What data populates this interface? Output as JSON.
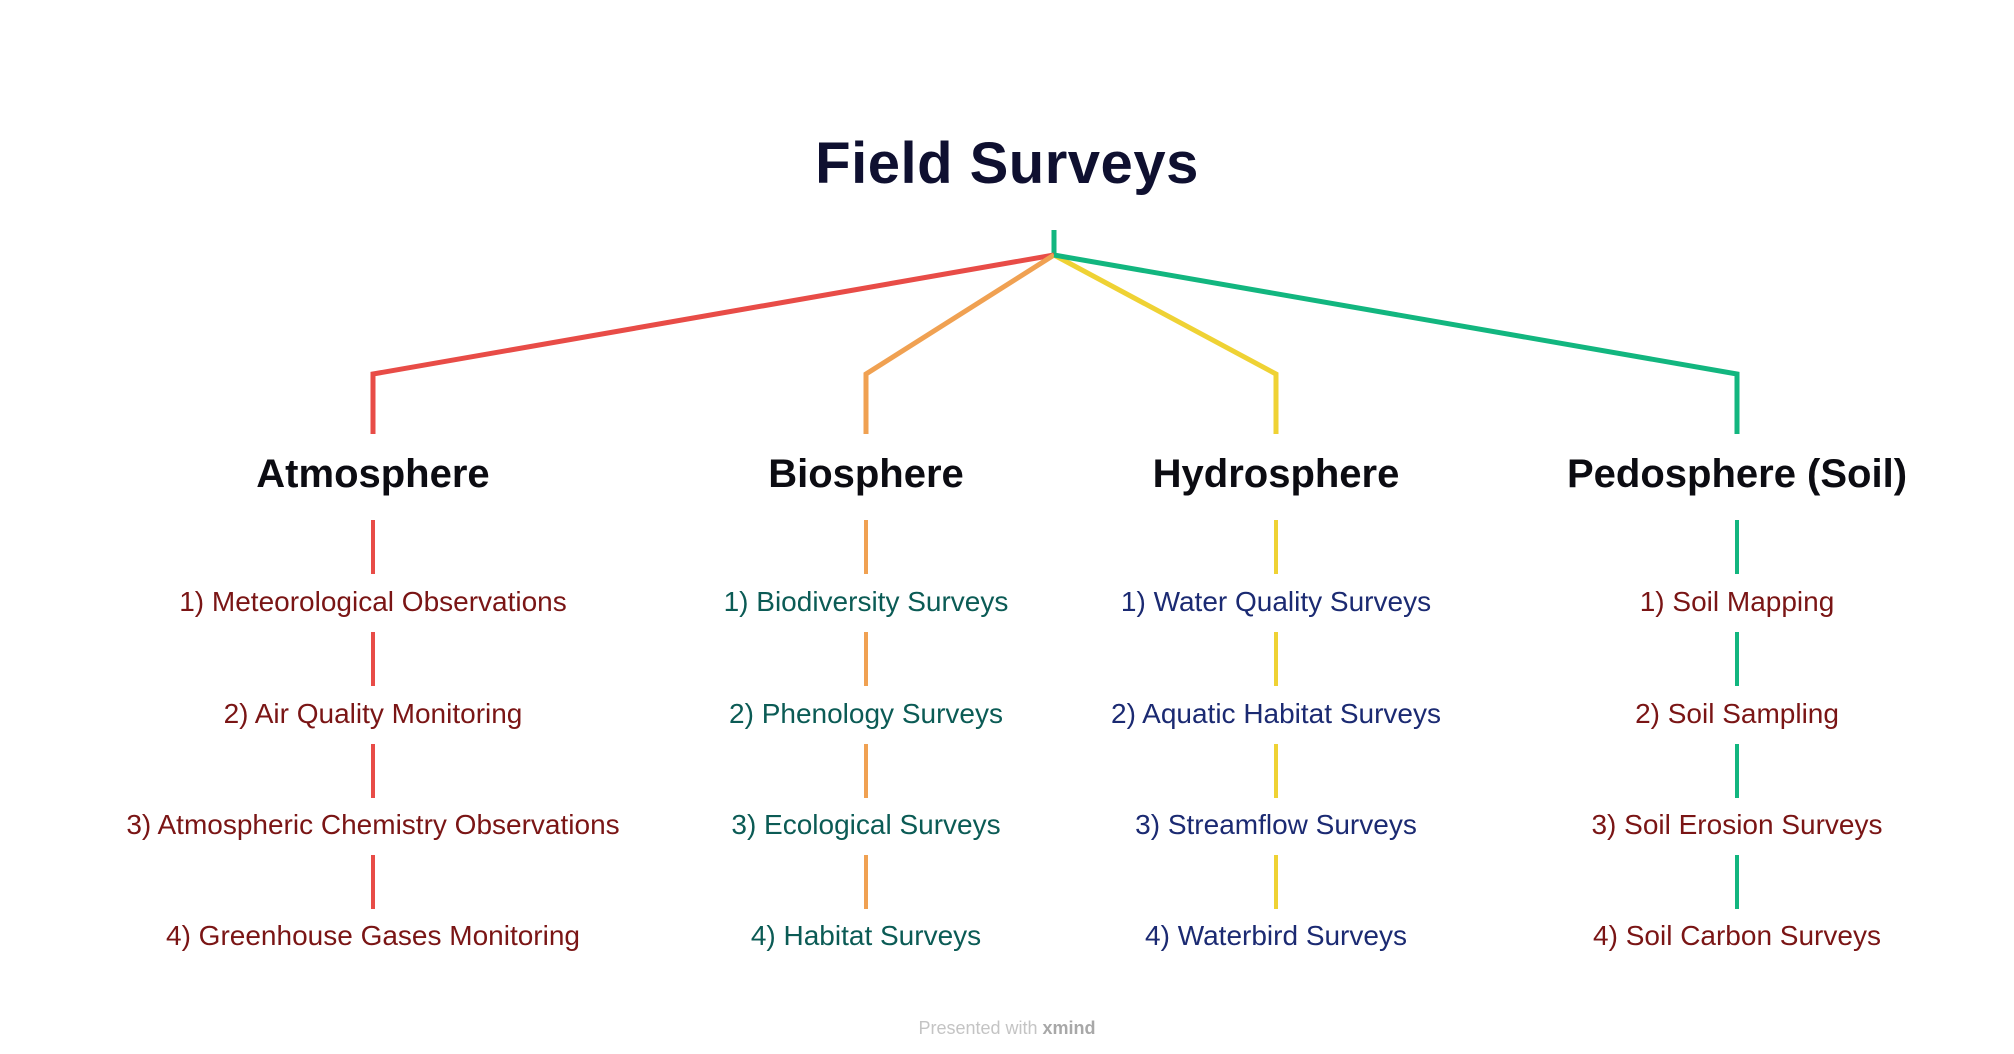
{
  "root": {
    "title": "Field Surveys",
    "color": "#0f1030"
  },
  "branches": [
    {
      "title": "Atmosphere",
      "line_color": "#e84c47",
      "text_color": "#7a1515",
      "items": [
        "1) Meteorological Observations",
        "2) Air Quality Monitoring",
        "3) Atmospheric Chemistry Observations",
        "4) Greenhouse Gases Monitoring"
      ]
    },
    {
      "title": "Biosphere",
      "line_color": "#f0a152",
      "text_color": "#0b5b55",
      "items": [
        "1) Biodiversity Surveys",
        "2) Phenology Surveys",
        "3) Ecological Surveys",
        "4) Habitat Surveys"
      ]
    },
    {
      "title": "Hydrosphere",
      "line_color": "#efd234",
      "text_color": "#1b2a72",
      "items": [
        "1) Water Quality Surveys",
        "2) Aquatic Habitat Surveys",
        "3) Streamflow Surveys",
        "4) Waterbird Surveys"
      ]
    },
    {
      "title": "Pedosphere (Soil)",
      "line_color": "#12b67f",
      "text_color": "#7a1515",
      "items": [
        "1) Soil Mapping",
        "2) Soil Sampling",
        "3) Soil Erosion Surveys",
        "4) Soil Carbon Surveys"
      ]
    }
  ],
  "footer": {
    "prefix": "Presented with ",
    "brand": "xmind"
  }
}
